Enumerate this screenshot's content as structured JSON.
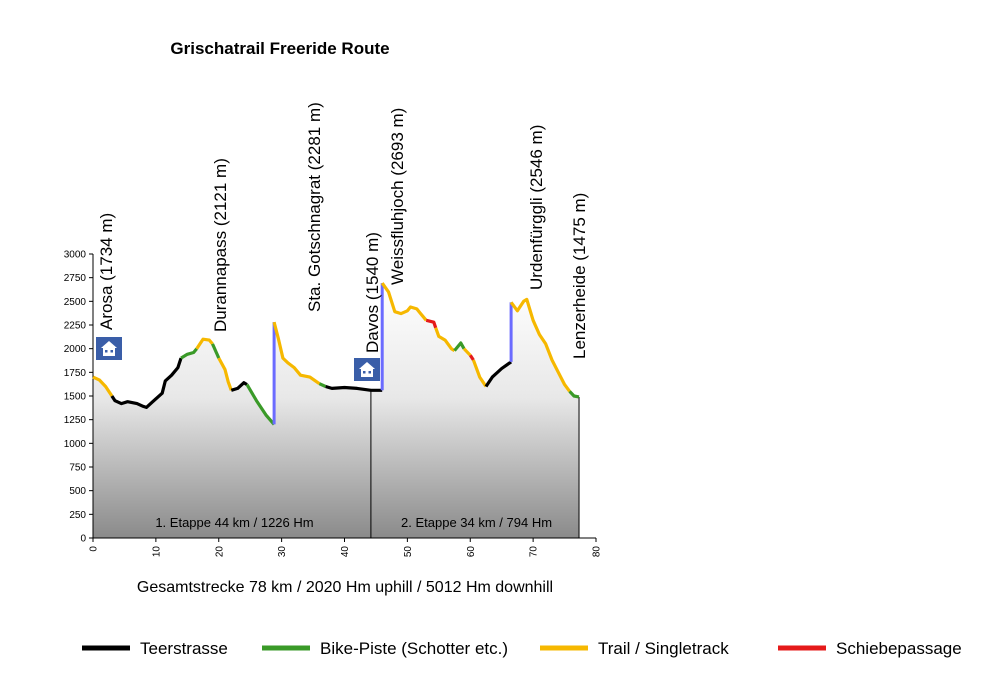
{
  "chart_data": {
    "type": "area",
    "title": "Grischatrail Freeride Route",
    "xlabel": "",
    "ylabel": "",
    "xlim": [
      0,
      80
    ],
    "ylim": [
      0,
      3000
    ],
    "x_ticks": [
      "0",
      "10",
      "20",
      "30",
      "40",
      "50",
      "60",
      "70",
      "80"
    ],
    "y_ticks": [
      "0",
      "250",
      "500",
      "750",
      "1000",
      "1250",
      "1500",
      "1750",
      "2000",
      "2250",
      "2500",
      "2750",
      "3000"
    ],
    "grid": false,
    "total_label": "Gesamtstrecke 78 km / 2020 Hm uphill / 5012 Hm downhill",
    "stage_split_km": 44.2,
    "stages": [
      {
        "label": "1. Etappe 44 km / 1226 Hm",
        "center_km": 22.5
      },
      {
        "label": "2. Etappe 34 km / 794 Hm",
        "center_km": 61
      }
    ],
    "profile": [
      {
        "surface": "trail",
        "points": [
          [
            0,
            1700
          ],
          [
            1,
            1670
          ],
          [
            2,
            1600
          ],
          [
            3,
            1500
          ]
        ]
      },
      {
        "surface": "road",
        "points": [
          [
            3,
            1500
          ],
          [
            3.5,
            1450
          ],
          [
            4.5,
            1420
          ],
          [
            5.5,
            1440
          ],
          [
            7,
            1420
          ],
          [
            8,
            1390
          ],
          [
            8.5,
            1380
          ],
          [
            9.5,
            1440
          ],
          [
            11,
            1530
          ],
          [
            11.5,
            1660
          ],
          [
            12.5,
            1720
          ],
          [
            13.5,
            1800
          ],
          [
            14,
            1900
          ]
        ]
      },
      {
        "surface": "piste",
        "points": [
          [
            14,
            1900
          ],
          [
            15,
            1940
          ],
          [
            16,
            1960
          ],
          [
            16.5,
            2000
          ]
        ]
      },
      {
        "surface": "trail",
        "points": [
          [
            16.5,
            2000
          ],
          [
            17.5,
            2100
          ],
          [
            18.5,
            2090
          ],
          [
            19,
            2050
          ]
        ]
      },
      {
        "surface": "piste",
        "points": [
          [
            19,
            2050
          ],
          [
            20,
            1900
          ]
        ]
      },
      {
        "surface": "trail",
        "points": [
          [
            20,
            1900
          ],
          [
            21,
            1780
          ],
          [
            21.5,
            1650
          ],
          [
            22,
            1560
          ]
        ]
      },
      {
        "surface": "road",
        "points": [
          [
            22,
            1560
          ],
          [
            23,
            1580
          ],
          [
            24,
            1640
          ],
          [
            24.5,
            1620
          ]
        ]
      },
      {
        "surface": "piste",
        "points": [
          [
            24.5,
            1620
          ],
          [
            26,
            1450
          ],
          [
            27.5,
            1300
          ],
          [
            28.8,
            1200
          ]
        ]
      },
      {
        "surface": "lift",
        "points": [
          [
            28.8,
            1200
          ],
          [
            28.8,
            2281
          ]
        ]
      },
      {
        "surface": "trail",
        "points": [
          [
            28.8,
            2281
          ],
          [
            29.5,
            2100
          ],
          [
            30.2,
            1900
          ],
          [
            31,
            1850
          ],
          [
            32,
            1800
          ],
          [
            33,
            1720
          ],
          [
            34.5,
            1700
          ],
          [
            36,
            1630
          ]
        ]
      },
      {
        "surface": "piste",
        "points": [
          [
            36,
            1630
          ],
          [
            37,
            1600
          ]
        ]
      },
      {
        "surface": "road",
        "points": [
          [
            37,
            1600
          ],
          [
            38,
            1580
          ],
          [
            40,
            1590
          ],
          [
            42,
            1580
          ],
          [
            44.2,
            1560
          ],
          [
            46,
            1560
          ]
        ]
      },
      {
        "surface": "lift",
        "points": [
          [
            46,
            1560
          ],
          [
            46,
            2693
          ]
        ]
      },
      {
        "surface": "trail",
        "points": [
          [
            46,
            2693
          ],
          [
            47,
            2600
          ],
          [
            48,
            2390
          ],
          [
            49,
            2370
          ],
          [
            50,
            2400
          ],
          [
            50.5,
            2440
          ],
          [
            51.5,
            2420
          ],
          [
            52,
            2380
          ],
          [
            53,
            2300
          ]
        ]
      },
      {
        "surface": "push",
        "points": [
          [
            53,
            2300
          ],
          [
            54.2,
            2280
          ],
          [
            54.5,
            2220
          ]
        ]
      },
      {
        "surface": "trail",
        "points": [
          [
            54.5,
            2220
          ],
          [
            55,
            2130
          ],
          [
            56,
            2090
          ],
          [
            57,
            2000
          ],
          [
            57.5,
            1980
          ]
        ]
      },
      {
        "surface": "piste",
        "points": [
          [
            57.5,
            1980
          ],
          [
            58.5,
            2060
          ],
          [
            59,
            2000
          ]
        ]
      },
      {
        "surface": "trail",
        "points": [
          [
            59,
            2000
          ],
          [
            60,
            1930
          ]
        ]
      },
      {
        "surface": "push",
        "points": [
          [
            60,
            1930
          ],
          [
            60.5,
            1880
          ]
        ]
      },
      {
        "surface": "trail",
        "points": [
          [
            60.5,
            1880
          ],
          [
            61.5,
            1700
          ],
          [
            62.5,
            1600
          ]
        ]
      },
      {
        "surface": "road",
        "points": [
          [
            62.5,
            1600
          ],
          [
            63.5,
            1700
          ],
          [
            65,
            1790
          ],
          [
            66.5,
            1860
          ]
        ]
      },
      {
        "surface": "lift",
        "points": [
          [
            66.5,
            1860
          ],
          [
            66.5,
            2490
          ]
        ]
      },
      {
        "surface": "trail",
        "points": [
          [
            66.5,
            2490
          ],
          [
            67.5,
            2400
          ],
          [
            68.5,
            2500
          ],
          [
            69,
            2520
          ],
          [
            70,
            2300
          ],
          [
            71,
            2150
          ],
          [
            72,
            2050
          ],
          [
            73,
            1880
          ],
          [
            74,
            1750
          ],
          [
            75,
            1620
          ],
          [
            75.8,
            1550
          ]
        ]
      },
      {
        "surface": "piste",
        "points": [
          [
            75.8,
            1550
          ],
          [
            76.5,
            1500
          ],
          [
            77.3,
            1490
          ]
        ]
      }
    ],
    "waypoints": [
      {
        "name": "Arosa (1734 m)",
        "km": 0,
        "elev": 1734,
        "hut": true
      },
      {
        "name": "Durannapass (2121 m)",
        "km": 17.5,
        "elev": 2121,
        "hut": false
      },
      {
        "name": "Sta. Gotschnagrat (2281 m)",
        "km": 28.8,
        "elev": 2281,
        "hut": false
      },
      {
        "name": "Davos (1540 m)",
        "km": 44.2,
        "elev": 1540,
        "hut": true
      },
      {
        "name": "Weissfluhjoch (2693 m)",
        "km": 46,
        "elev": 2693,
        "hut": false
      },
      {
        "name": "Urdenfürggli (2546 m)",
        "km": 66.5,
        "elev": 2546,
        "hut": false
      },
      {
        "name": "Lenzerheide (1475 m)",
        "km": 77.3,
        "elev": 1475,
        "hut": false
      }
    ],
    "legend": {
      "placement": "bottom",
      "entries": [
        {
          "key": "road",
          "label": "Teerstrasse"
        },
        {
          "key": "piste",
          "label": "Bike-Piste (Schotter etc.)"
        },
        {
          "key": "trail",
          "label": "Trail / Singletrack"
        },
        {
          "key": "push",
          "label": "Schiebepassage"
        }
      ]
    },
    "colors": {
      "road": "#000000",
      "piste": "#3a9a28",
      "trail": "#f6b800",
      "push": "#e51a1a",
      "lift": "#6b6bff",
      "hut": "#3a5ea8"
    }
  }
}
